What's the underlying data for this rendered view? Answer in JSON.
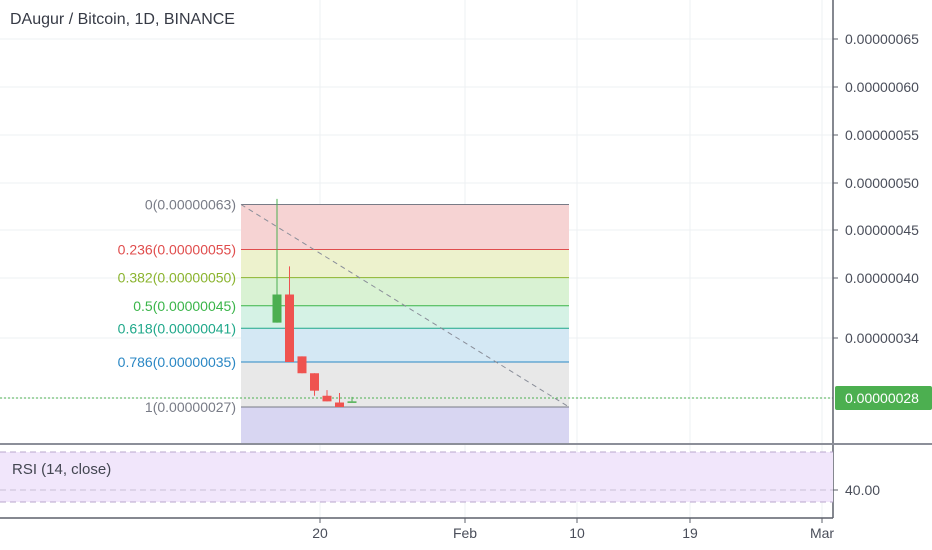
{
  "chart_data": {
    "type": "candlestick",
    "title": "DAugur / Bitcoin, 1D, BINANCE",
    "price_axis": {
      "ticks": [
        "0.00000065",
        "0.00000060",
        "0.00000055",
        "0.00000050",
        "0.00000045",
        "0.00000040",
        "0.00000034"
      ],
      "last_price": "0.00000028"
    },
    "time_axis": {
      "ticks": [
        "20",
        "Feb",
        "10",
        "19",
        "Mar"
      ]
    },
    "fibonacci": {
      "levels": [
        {
          "label": "0(0.00000063)",
          "value": 6.3,
          "color": "#787b86"
        },
        {
          "label": "0.236(0.00000055)",
          "value": 5.5,
          "color": "#e04d4d"
        },
        {
          "label": "0.382(0.00000050)",
          "value": 5.0,
          "color": "#8bb42f"
        },
        {
          "label": "0.5(0.00000045)",
          "value": 4.5,
          "color": "#3bb54a"
        },
        {
          "label": "0.618(0.00000041)",
          "value": 4.1,
          "color": "#1fa88a"
        },
        {
          "label": "0.786(0.00000035)",
          "value": 3.5,
          "color": "#2a87c4"
        },
        {
          "label": "1(0.00000027)",
          "value": 2.7,
          "color": "#787b86"
        }
      ],
      "band_colors": [
        "#f6d3d3",
        "#edf2cd",
        "#d9f2d3",
        "#d5f2e5",
        "#d4e8f4",
        "#e8e8e8",
        "#d8d6f2"
      ]
    },
    "candles": [
      {
        "day": 0,
        "open": 4.2,
        "high": 6.4,
        "low": 4.2,
        "close": 4.7
      },
      {
        "day": 1,
        "open": 4.7,
        "high": 5.2,
        "low": 3.5,
        "close": 3.5
      },
      {
        "day": 2,
        "open": 3.6,
        "high": 3.6,
        "low": 3.3,
        "close": 3.3
      },
      {
        "day": 3,
        "open": 3.3,
        "high": 3.3,
        "low": 2.9,
        "close": 2.99
      },
      {
        "day": 4,
        "open": 2.9,
        "high": 3.0,
        "low": 2.8,
        "close": 2.8
      },
      {
        "day": 5,
        "open": 2.78,
        "high": 2.95,
        "low": 2.7,
        "close": 2.7
      },
      {
        "day": 6,
        "open": 2.8,
        "high": 2.88,
        "low": 2.8,
        "close": 2.8
      }
    ],
    "rsi": {
      "label": "RSI (14, close)",
      "tick": "40.00"
    },
    "colors": {
      "up": "#4caf50",
      "down": "#ef5350",
      "price_badge": "#4caf50"
    }
  }
}
